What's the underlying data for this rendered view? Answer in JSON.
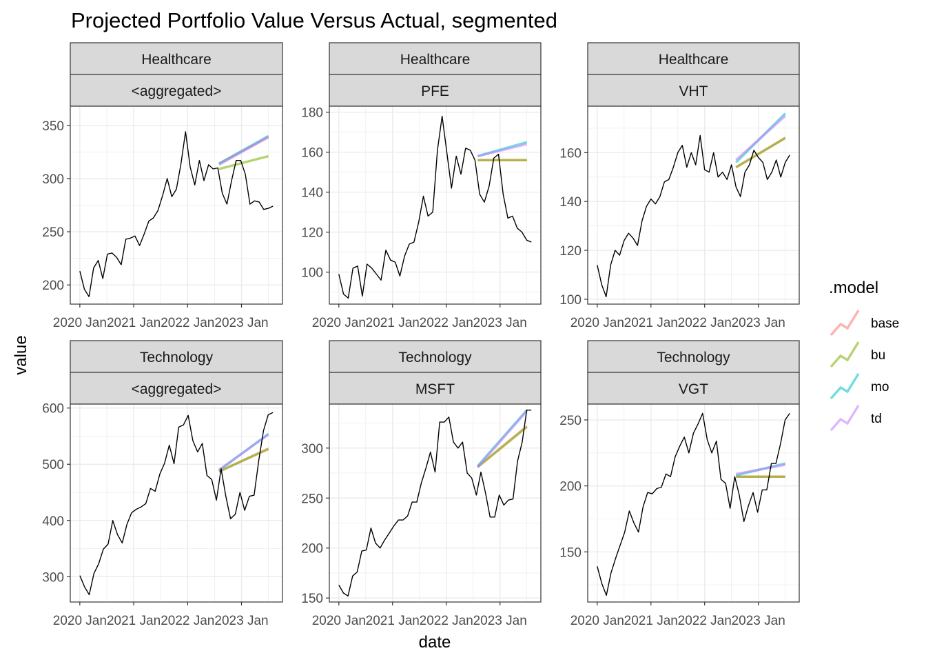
{
  "title": "Projected Portfolio Value Versus Actual, segmented",
  "xlabel": "date",
  "ylabel": "value",
  "legend": {
    "title": ".model",
    "position": "right",
    "entries": [
      {
        "name": "base",
        "color": "#F8766D"
      },
      {
        "name": "bu",
        "color": "#7CAE00"
      },
      {
        "name": "mo",
        "color": "#00BFC4"
      },
      {
        "name": "td",
        "color": "#C77CFF"
      }
    ]
  },
  "chart_data": [
    {
      "type": "line",
      "strip_top": "Healthcare",
      "strip_bottom": "<aggregated>",
      "xlabels": [
        "2020 Jan",
        "2021 Jan",
        "2022 Jan",
        "2023 Jan"
      ],
      "yticks": [
        200,
        250,
        300,
        350
      ],
      "ylim": [
        182,
        368
      ],
      "actual": [
        213,
        196,
        189,
        216,
        223,
        206,
        229,
        230,
        226,
        219,
        243,
        244,
        246,
        237,
        248,
        260,
        263,
        270,
        284,
        300,
        283,
        290,
        314,
        344,
        311,
        294,
        317,
        298,
        313,
        309,
        310,
        286,
        276,
        298,
        317,
        317,
        304,
        276,
        279,
        278,
        271,
        272,
        274
      ],
      "forecast": {
        "base": [
          314,
          339
        ],
        "bu": [
          309,
          321
        ],
        "mo": [
          314,
          340
        ],
        "td": [
          313,
          339
        ]
      }
    },
    {
      "type": "line",
      "strip_top": "Healthcare",
      "strip_bottom": "PFE",
      "xlabels": [
        "2020 Jan",
        "2021 Jan",
        "2022 Jan",
        "2023 Jan"
      ],
      "yticks": [
        100,
        120,
        140,
        160,
        180
      ],
      "ylim": [
        84,
        183
      ],
      "actual": [
        99,
        89,
        87,
        102,
        103,
        88,
        104,
        102,
        99,
        96,
        111,
        106,
        105,
        98,
        108,
        114,
        115,
        125,
        138,
        128,
        130,
        161,
        178,
        160,
        142,
        158,
        149,
        162,
        161,
        156,
        139,
        135,
        143,
        157,
        159,
        139,
        127,
        128,
        122,
        120,
        116,
        115
      ],
      "forecast": {
        "base": [
          156,
          156
        ],
        "bu": [
          156,
          156
        ],
        "mo": [
          158,
          165
        ],
        "td": [
          158,
          164
        ]
      }
    },
    {
      "type": "line",
      "strip_top": "Healthcare",
      "strip_bottom": "VHT",
      "xlabels": [
        "2020 Jan",
        "2021 Jan",
        "2022 Jan",
        "2023 Jan"
      ],
      "yticks": [
        100,
        120,
        140,
        160
      ],
      "ylim": [
        98,
        179
      ],
      "actual": [
        114,
        106,
        101,
        114,
        120,
        118,
        124,
        127,
        125,
        122,
        132,
        138,
        141,
        139,
        142,
        148,
        149,
        154,
        160,
        163,
        154,
        160,
        155,
        167,
        153,
        152,
        160,
        150,
        152,
        149,
        155,
        146,
        142,
        152,
        155,
        161,
        158,
        156,
        149,
        152,
        157,
        150,
        156,
        159
      ],
      "forecast": {
        "base": [
          154,
          166
        ],
        "bu": [
          154,
          166
        ],
        "mo": [
          156,
          176
        ],
        "td": [
          157,
          175
        ]
      }
    },
    {
      "type": "line",
      "strip_top": "Technology",
      "strip_bottom": "<aggregated>",
      "xlabels": [
        "2020 Jan",
        "2021 Jan",
        "2022 Jan",
        "2023 Jan"
      ],
      "yticks": [
        300,
        400,
        500,
        600
      ],
      "ylim": [
        255,
        607
      ],
      "actual": [
        302,
        282,
        268,
        306,
        323,
        349,
        358,
        400,
        375,
        360,
        393,
        414,
        420,
        424,
        430,
        457,
        452,
        483,
        502,
        534,
        501,
        566,
        570,
        587,
        542,
        522,
        537,
        480,
        473,
        436,
        492,
        443,
        403,
        411,
        450,
        418,
        443,
        445,
        507,
        560,
        588,
        592
      ],
      "forecast": {
        "base": [
          487,
          528
        ],
        "bu": [
          487,
          527
        ],
        "mo": [
          489,
          554
        ],
        "td": [
          490,
          553
        ]
      }
    },
    {
      "type": "line",
      "strip_top": "Technology",
      "strip_bottom": "MSFT",
      "xlabels": [
        "2020 Jan",
        "2021 Jan",
        "2022 Jan",
        "2023 Jan"
      ],
      "yticks": [
        150,
        200,
        250,
        300
      ],
      "ylim": [
        146,
        344
      ],
      "actual": [
        163,
        155,
        152,
        172,
        176,
        197,
        198,
        220,
        205,
        200,
        208,
        215,
        222,
        228,
        228,
        232,
        246,
        246,
        265,
        280,
        296,
        276,
        326,
        326,
        331,
        306,
        300,
        306,
        275,
        270,
        253,
        276,
        255,
        231,
        231,
        253,
        243,
        248,
        249,
        287,
        306,
        338,
        338
      ],
      "forecast": {
        "base": [
          281,
          322
        ],
        "bu": [
          281,
          321
        ],
        "mo": [
          282,
          338
        ],
        "td": [
          281,
          337
        ]
      }
    },
    {
      "type": "line",
      "strip_top": "Technology",
      "strip_bottom": "VGT",
      "xlabels": [
        "2020 Jan",
        "2021 Jan",
        "2022 Jan",
        "2023 Jan"
      ],
      "yticks": [
        150,
        200,
        250
      ],
      "ylim": [
        112,
        262
      ],
      "actual": [
        139,
        126,
        117,
        134,
        145,
        155,
        165,
        181,
        172,
        165,
        184,
        195,
        194,
        198,
        199,
        209,
        207,
        222,
        230,
        237,
        225,
        240,
        247,
        255,
        235,
        225,
        234,
        205,
        202,
        183,
        207,
        193,
        173,
        185,
        195,
        180,
        197,
        197,
        217,
        217,
        232,
        250,
        255
      ],
      "forecast": {
        "base": [
          207,
          207
        ],
        "bu": [
          207,
          207
        ],
        "mo": [
          208,
          217
        ],
        "td": [
          209,
          216
        ]
      }
    }
  ]
}
